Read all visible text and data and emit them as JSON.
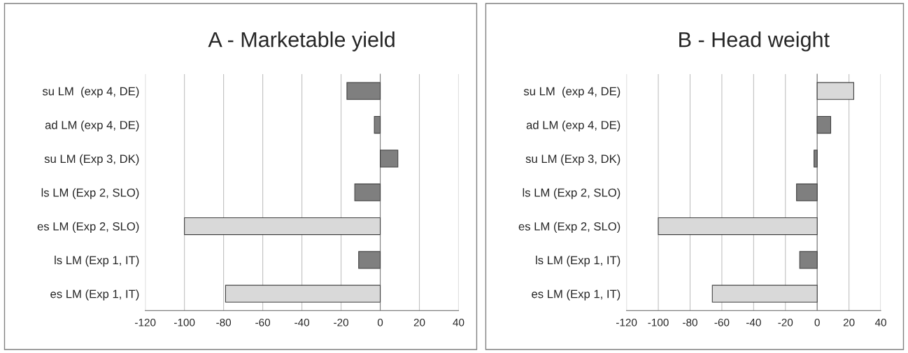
{
  "chart_data": [
    {
      "type": "bar",
      "orientation": "horizontal",
      "title": "A - Marketable yield",
      "categories": [
        "su LM  (exp 4, DE)",
        "ad LM (exp 4, DE)",
        "su LM (Exp 3, DK)",
        "ls LM (Exp 2, SLO)",
        "es LM (Exp 2, SLO)",
        "ls LM (Exp 1, IT)",
        "es LM (Exp 1, IT)"
      ],
      "values": [
        -17,
        -3,
        9,
        -13,
        -100,
        -11,
        -79
      ],
      "colors": [
        "#7f7f7f",
        "#7f7f7f",
        "#7f7f7f",
        "#7f7f7f",
        "#d9d9d9",
        "#7f7f7f",
        "#d9d9d9"
      ],
      "xlim": [
        -120,
        40
      ],
      "xticks": [
        -120,
        -100,
        -80,
        -60,
        -40,
        -20,
        0,
        20,
        40
      ],
      "grid": "x"
    },
    {
      "type": "bar",
      "orientation": "horizontal",
      "title": "B - Head weight",
      "categories": [
        "su LM  (exp 4, DE)",
        "ad LM (exp 4, DE)",
        "su LM (Exp 3, DK)",
        "ls LM (Exp 2, SLO)",
        "es LM (Exp 2, SLO)",
        "ls LM (Exp 1, IT)",
        "es LM (Exp 1, IT)"
      ],
      "values": [
        23,
        8.5,
        -2,
        -13,
        -100,
        -11,
        -66
      ],
      "colors": [
        "#d9d9d9",
        "#7f7f7f",
        "#7f7f7f",
        "#7f7f7f",
        "#d9d9d9",
        "#7f7f7f",
        "#d9d9d9"
      ],
      "xlim": [
        -120,
        40
      ],
      "xticks": [
        -120,
        -100,
        -80,
        -60,
        -40,
        -20,
        0,
        20,
        40
      ],
      "grid": "x"
    }
  ]
}
